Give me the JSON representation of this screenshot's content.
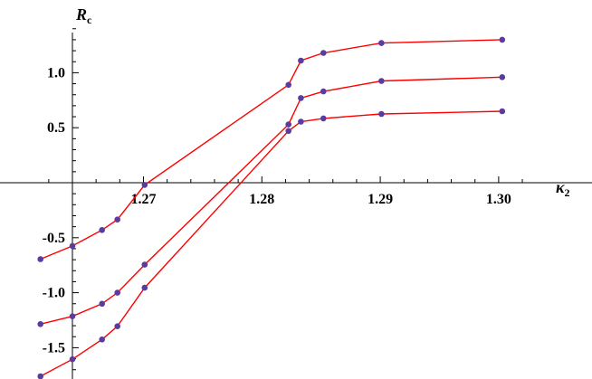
{
  "chart_data": {
    "type": "line",
    "title": "",
    "xlabel": {
      "main": "κ",
      "sub": "2"
    },
    "ylabel": {
      "main": "R",
      "sub": "c"
    },
    "xlim": [
      1.2613,
      1.3003
    ],
    "ylim": [
      -1.8,
      1.45
    ],
    "x_ticks": [
      {
        "value": 1.27,
        "label": "1.27"
      },
      {
        "value": 1.28,
        "label": "1.28"
      },
      {
        "value": 1.29,
        "label": "1.29"
      },
      {
        "value": 1.3,
        "label": "1.30"
      }
    ],
    "y_ticks": [
      {
        "value": 1.0,
        "label": "1.0"
      },
      {
        "value": 0.5,
        "label": "0.5"
      },
      {
        "value": -0.5,
        "label": "-0.5"
      },
      {
        "value": -1.0,
        "label": "-1.0"
      },
      {
        "value": -1.5,
        "label": "-1.5"
      }
    ],
    "grid": false,
    "colors": {
      "line": "#ff0000",
      "point": "#5a3b9e"
    },
    "series": [
      {
        "x": [
          1.2613,
          1.264,
          1.2665,
          1.2678,
          1.2701,
          1.28225,
          1.2833,
          1.2852,
          1.2901,
          1.3003
        ],
        "y": [
          -0.695,
          -0.575,
          -0.43,
          -0.335,
          -0.02,
          0.89,
          1.11,
          1.18,
          1.27,
          1.3
        ]
      },
      {
        "x": [
          1.2613,
          1.264,
          1.2665,
          1.2678,
          1.2701,
          1.28225,
          1.2833,
          1.2852,
          1.2901,
          1.3003
        ],
        "y": [
          -1.285,
          -1.215,
          -1.1,
          -1.0,
          -0.745,
          0.53,
          0.77,
          0.83,
          0.925,
          0.96
        ]
      },
      {
        "x": [
          1.2613,
          1.264,
          1.2665,
          1.2678,
          1.2701,
          1.28225,
          1.2833,
          1.2852,
          1.2901,
          1.3003
        ],
        "y": [
          -1.76,
          -1.605,
          -1.425,
          -1.305,
          -0.955,
          0.47,
          0.555,
          0.585,
          0.625,
          0.65
        ]
      }
    ]
  }
}
